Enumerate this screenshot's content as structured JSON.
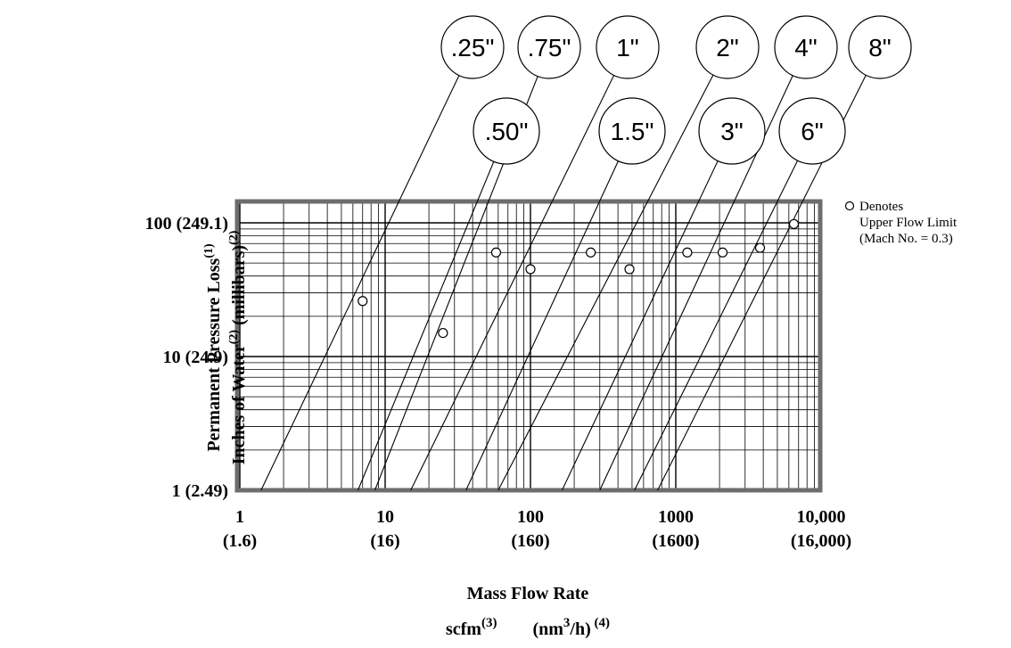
{
  "chart_data": {
    "type": "line",
    "x_scale": "log",
    "y_scale": "log",
    "xlim": [
      1,
      20000
    ],
    "ylim": [
      1,
      130
    ],
    "grid": true,
    "xlabel": "Mass Flow Rate",
    "xlabel_units": {
      "scfm": "scfm",
      "scfm_note": "(3)",
      "nm_prefix": "(nm",
      "nm_sup": "3",
      "nm_suffix": "/h)",
      "nm_note": "(4)"
    },
    "ylabel_line1": {
      "text": "Permanent Pressure Loss",
      "note": "(1)"
    },
    "ylabel_line2": {
      "text1": "Inches of Water",
      "note1": "(2)",
      "text2": "(millibars)",
      "note2": "(2)"
    },
    "x_ticks": [
      {
        "value": 1,
        "label": "1",
        "sub": "(1.6)"
      },
      {
        "value": 10,
        "label": "10",
        "sub": "(16)"
      },
      {
        "value": 100,
        "label": "100",
        "sub": "(160)"
      },
      {
        "value": 1000,
        "label": "1000",
        "sub": "(1600)"
      },
      {
        "value": 10000,
        "label": "10,000",
        "sub": "(16,000)"
      }
    ],
    "y_ticks": [
      {
        "value": 1,
        "label": "1 (2.49)"
      },
      {
        "value": 10,
        "label": "10 (24.9)"
      },
      {
        "value": 100,
        "label": "100 (249.1)"
      }
    ],
    "legend": {
      "marker": "circle",
      "line1": "Denotes",
      "line2": "Upper Flow Limit",
      "line3": "(Mach No. = 0.3)",
      "position": "right"
    },
    "series": [
      {
        "name": ".25\"",
        "x1": 1.4,
        "y1": 1,
        "x_end": 7,
        "y_end": 26,
        "label_row": "top"
      },
      {
        "name": ".50\"",
        "x1": 6.5,
        "y1": 1,
        "x_end": 25,
        "y_end": 15,
        "label_row": "bottom"
      },
      {
        "name": ".75\"",
        "x1": 8.5,
        "y1": 1,
        "x_end": 58,
        "y_end": 60,
        "label_row": "top"
      },
      {
        "name": "1\"",
        "x1": 15,
        "y1": 1,
        "x_end": 100,
        "y_end": 45,
        "label_row": "top"
      },
      {
        "name": "1.5\"",
        "x1": 36,
        "y1": 1,
        "x_end": 260,
        "y_end": 60,
        "label_row": "bottom"
      },
      {
        "name": "2\"",
        "x1": 60,
        "y1": 1,
        "x_end": 480,
        "y_end": 45,
        "label_row": "top"
      },
      {
        "name": "3\"",
        "x1": 165,
        "y1": 1,
        "x_end": 1200,
        "y_end": 60,
        "label_row": "bottom"
      },
      {
        "name": "4\"",
        "x1": 300,
        "y1": 1,
        "x_end": 2100,
        "y_end": 60,
        "label_row": "top"
      },
      {
        "name": "6\"",
        "x1": 520,
        "y1": 1,
        "x_end": 3800,
        "y_end": 65,
        "label_row": "bottom"
      },
      {
        "name": "8\"",
        "x1": 750,
        "y1": 1,
        "x_end": 6500,
        "y_end": 98,
        "label_row": "top"
      }
    ]
  }
}
